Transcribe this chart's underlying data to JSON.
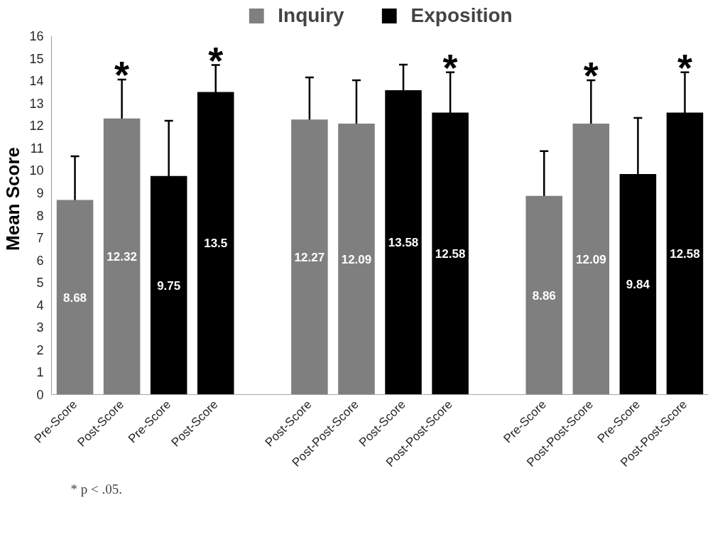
{
  "chart_data": {
    "type": "bar",
    "ylabel": "Mean Score",
    "categories": [
      "Pre-Score",
      "Post-Score",
      "Pre-Score",
      "Post-Score",
      null,
      "Post-Score",
      "Post-Post-Score",
      "Post-Score",
      "Post-Post-Score",
      null,
      "Pre-Score",
      "Post-Post-Score",
      "Pre-Score",
      "Post-Post-Score"
    ],
    "series": [
      {
        "name": "Inquiry",
        "color": "#7f7f7f",
        "values": [
          8.68,
          12.32,
          null,
          null,
          null,
          12.27,
          12.09,
          null,
          null,
          null,
          8.86,
          12.09,
          null,
          null
        ],
        "errors": [
          1.95,
          1.73,
          null,
          null,
          null,
          1.88,
          1.93,
          null,
          null,
          null,
          2.0,
          1.93,
          null,
          null
        ]
      },
      {
        "name": "Exposition",
        "color": "#000000",
        "values": [
          null,
          null,
          9.75,
          13.5,
          null,
          null,
          null,
          13.58,
          12.58,
          null,
          null,
          null,
          9.84,
          12.58
        ],
        "errors": [
          null,
          null,
          2.46,
          1.2,
          null,
          null,
          null,
          1.14,
          1.8,
          null,
          null,
          null,
          2.5,
          1.8
        ]
      }
    ],
    "ylim": [
      0,
      16
    ],
    "yticks": [
      0,
      1,
      2,
      3,
      4,
      5,
      6,
      7,
      8,
      9,
      10,
      11,
      12,
      13,
      14,
      15,
      16
    ],
    "data_labels": true,
    "legend": "top",
    "annotations": [
      "*",
      "*",
      "*",
      "*",
      "*",
      "* p < .05."
    ]
  }
}
